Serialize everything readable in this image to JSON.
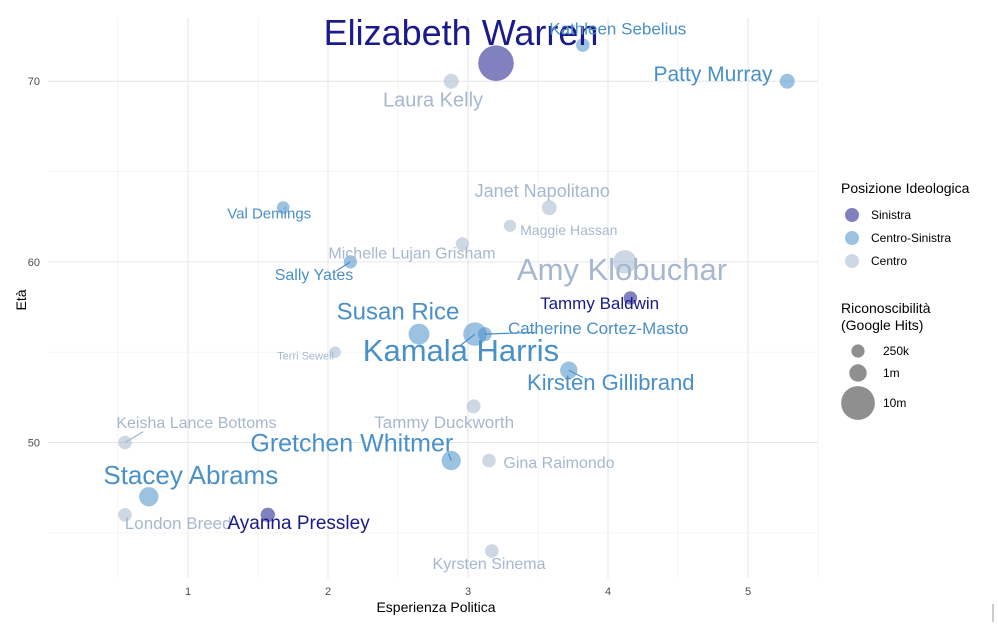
{
  "colors": {
    "Sinistra": "#1a1a8c",
    "Centro-Sinistra": "#4a90c8",
    "Centro": "#a6b8cf"
  },
  "chart_data": {
    "type": "scatter",
    "xlabel": "Esperienza Politica",
    "ylabel": "Età",
    "xlim": [
      0.0,
      5.5
    ],
    "ylim": [
      42.5,
      73.5
    ],
    "x_ticks": [
      1,
      2,
      3,
      4,
      5
    ],
    "y_ticks": [
      50,
      60,
      70
    ],
    "grid": true,
    "legend_color_title": "Posizione Ideologica",
    "legend_color_entries": [
      "Sinistra",
      "Centro-Sinistra",
      "Centro"
    ],
    "legend_size_title": [
      "Riconoscibilità",
      "(Google Hits)"
    ],
    "legend_size_entries": [
      {
        "label": "250k",
        "size": 0.25
      },
      {
        "label": "1m",
        "size": 1
      },
      {
        "label": "10m",
        "size": 10
      }
    ],
    "points": [
      {
        "name": "Elizabeth Warren",
        "x": 3.2,
        "y": 71,
        "group": "Sinistra",
        "size": 10,
        "font": 36,
        "lx": 2.95,
        "ly": 72,
        "anchor": "middle"
      },
      {
        "name": "Kathleen Sebelius",
        "x": 3.82,
        "y": 72,
        "group": "Centro-Sinistra",
        "size": 0.3,
        "font": 17,
        "lx": 4.07,
        "ly": 72.6,
        "anchor": "middle"
      },
      {
        "name": "Patty Murray",
        "x": 5.28,
        "y": 70,
        "group": "Centro-Sinistra",
        "size": 0.5,
        "font": 21,
        "lx": 4.75,
        "ly": 70,
        "anchor": "middle"
      },
      {
        "name": "Laura Kelly",
        "x": 2.88,
        "y": 70,
        "group": "Centro",
        "size": 0.5,
        "font": 20,
        "lx": 2.75,
        "ly": 68.6,
        "anchor": "middle"
      },
      {
        "name": "Janet Napolitano",
        "x": 3.58,
        "y": 63,
        "group": "Centro",
        "size": 0.5,
        "font": 18,
        "lx": 3.53,
        "ly": 63.6,
        "anchor": "middle"
      },
      {
        "name": "Val Demings",
        "x": 1.68,
        "y": 63,
        "group": "Centro-Sinistra",
        "size": 0.2,
        "font": 15,
        "lx": 1.58,
        "ly": 62.4,
        "anchor": "middle"
      },
      {
        "name": "Maggie Hassan",
        "x": 3.3,
        "y": 62,
        "group": "Centro",
        "size": 0.15,
        "font": 14,
        "lx": 3.72,
        "ly": 61.5,
        "anchor": "middle"
      },
      {
        "name": "Michelle Lujan Grisham",
        "x": 2.96,
        "y": 61,
        "group": "Centro",
        "size": 0.25,
        "font": 16,
        "lx": 2.6,
        "ly": 60.2,
        "anchor": "middle"
      },
      {
        "name": "Sally Yates",
        "x": 2.16,
        "y": 60,
        "group": "Centro-Sinistra",
        "size": 0.25,
        "font": 16,
        "lx": 1.9,
        "ly": 59,
        "anchor": "middle"
      },
      {
        "name": "Amy Klobuchar",
        "x": 4.12,
        "y": 60,
        "group": "Centro",
        "size": 3,
        "font": 31,
        "lx": 4.1,
        "ly": 59,
        "anchor": "middle"
      },
      {
        "name": "Tammy Baldwin",
        "x": 4.16,
        "y": 58,
        "group": "Sinistra",
        "size": 0.3,
        "font": 17,
        "lx": 3.94,
        "ly": 57.4,
        "anchor": "middle"
      },
      {
        "name": "Susan Rice",
        "x": 2.65,
        "y": 56,
        "group": "Centro-Sinistra",
        "size": 2,
        "font": 24,
        "lx": 2.5,
        "ly": 56.8,
        "anchor": "middle"
      },
      {
        "name": "Catherine Cortez-Masto",
        "x": 3.12,
        "y": 56,
        "group": "Centro-Sinistra",
        "size": 0.35,
        "font": 17,
        "lx": 3.93,
        "ly": 56,
        "anchor": "middle"
      },
      {
        "name": "Kamala Harris",
        "x": 3.05,
        "y": 56,
        "group": "Centro-Sinistra",
        "size": 3,
        "font": 31,
        "lx": 2.95,
        "ly": 54.5,
        "anchor": "middle"
      },
      {
        "name": "Terri Sewell",
        "x": 2.05,
        "y": 55,
        "group": "Centro",
        "size": 0.1,
        "font": 11,
        "lx": 1.84,
        "ly": 54.6,
        "anchor": "middle"
      },
      {
        "name": "Kirsten Gillibrand",
        "x": 3.72,
        "y": 54,
        "group": "Centro-Sinistra",
        "size": 1,
        "font": 22,
        "lx": 4.02,
        "ly": 52.9,
        "anchor": "middle"
      },
      {
        "name": "Tammy Duckworth",
        "x": 3.04,
        "y": 52,
        "group": "Centro",
        "size": 0.35,
        "font": 17,
        "lx": 2.83,
        "ly": 50.8,
        "anchor": "middle"
      },
      {
        "name": "Keisha Lance Bottoms",
        "x": 0.55,
        "y": 50,
        "group": "Centro",
        "size": 0.3,
        "font": 16,
        "lx": 1.06,
        "ly": 50.8,
        "anchor": "middle"
      },
      {
        "name": "Gretchen Whitmer",
        "x": 2.88,
        "y": 49,
        "group": "Centro-Sinistra",
        "size": 1.5,
        "font": 25,
        "lx": 2.17,
        "ly": 49.5,
        "anchor": "middle"
      },
      {
        "name": "Gina Raimondo",
        "x": 3.15,
        "y": 49,
        "group": "Centro",
        "size": 0.3,
        "font": 16,
        "lx": 3.65,
        "ly": 48.6,
        "anchor": "middle"
      },
      {
        "name": "Stacey Abrams",
        "x": 0.72,
        "y": 47,
        "group": "Centro-Sinistra",
        "size": 1.5,
        "font": 26,
        "lx": 1.02,
        "ly": 47.7,
        "anchor": "middle"
      },
      {
        "name": "London Breed",
        "x": 0.55,
        "y": 46,
        "group": "Centro",
        "size": 0.3,
        "font": 17,
        "lx": 0.93,
        "ly": 45.2,
        "anchor": "middle"
      },
      {
        "name": "Ayanna Pressley",
        "x": 1.57,
        "y": 46,
        "group": "Sinistra",
        "size": 0.4,
        "font": 19,
        "lx": 1.79,
        "ly": 45.2,
        "anchor": "middle"
      },
      {
        "name": "Kyrsten Sinema",
        "x": 3.17,
        "y": 44,
        "group": "Centro",
        "size": 0.3,
        "font": 16,
        "lx": 3.15,
        "ly": 43,
        "anchor": "middle"
      }
    ],
    "leaders": [
      {
        "x1": 3.12,
        "y1": 56,
        "x2": 3.48,
        "y2": 56.1,
        "group": "Centro-Sinistra"
      },
      {
        "x1": 2.16,
        "y1": 60,
        "x2": 2.06,
        "y2": 59.5,
        "group": "Centro-Sinistra"
      },
      {
        "x1": 3.05,
        "y1": 56,
        "x2": 2.95,
        "y2": 55.4,
        "group": "Centro-Sinistra"
      },
      {
        "x1": 3.72,
        "y1": 54,
        "x2": 3.82,
        "y2": 53.6,
        "group": "Centro-Sinistra"
      },
      {
        "x1": 0.55,
        "y1": 50,
        "x2": 0.68,
        "y2": 50.6,
        "group": "Centro"
      },
      {
        "x1": 2.88,
        "y1": 49,
        "x2": 2.86,
        "y2": 49.4,
        "group": "Centro-Sinistra"
      }
    ]
  }
}
